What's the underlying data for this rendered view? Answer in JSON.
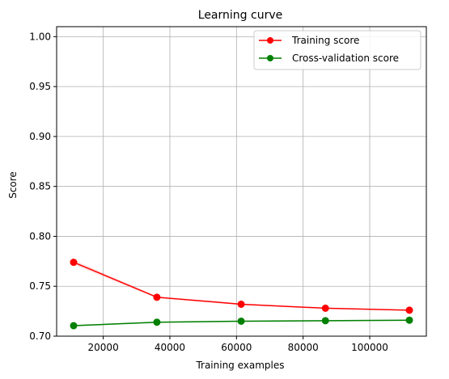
{
  "chart_data": {
    "type": "line",
    "title": "Learning curve",
    "xlabel": "Training examples",
    "ylabel": "Score",
    "xlim": [
      6000,
      117000
    ],
    "ylim": [
      0.7,
      1.01
    ],
    "xticks": [
      20000,
      40000,
      60000,
      80000,
      100000
    ],
    "xtick_labels": [
      "20000",
      "40000",
      "60000",
      "80000",
      "100000"
    ],
    "yticks": [
      0.7,
      0.75,
      0.8,
      0.85,
      0.9,
      0.95,
      1.0
    ],
    "ytick_labels": [
      "0.70",
      "0.75",
      "0.80",
      "0.85",
      "0.90",
      "0.95",
      "1.00"
    ],
    "grid": true,
    "legend_position": "top-right",
    "x": [
      11100,
      36100,
      61400,
      86700,
      111900
    ],
    "series": [
      {
        "name": "Training score",
        "color": "#ff0000",
        "band_color": "#ff0000",
        "values": [
          0.774,
          0.739,
          0.732,
          0.728,
          0.726
        ],
        "band": [
          0.0025,
          0.0012,
          0.0008,
          0.0005,
          0.0004
        ]
      },
      {
        "name": "Cross-validation score",
        "color": "#008000",
        "band_color": "#008000",
        "values": [
          0.7105,
          0.714,
          0.715,
          0.7155,
          0.716
        ],
        "band": [
          0.0008,
          0.0008,
          0.0008,
          0.0008,
          0.0008
        ]
      }
    ]
  }
}
